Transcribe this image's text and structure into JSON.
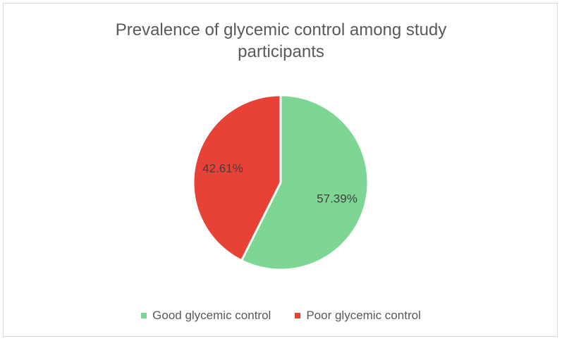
{
  "chart_data": {
    "type": "pie",
    "title": "Prevalence of glycemic control among study\nparticipants",
    "categories": [
      "Good glycemic control",
      "Poor glycemic control"
    ],
    "values": [
      57.39,
      42.61
    ],
    "labels": [
      "57.39%",
      "42.61%"
    ],
    "colors": [
      "#7dd694",
      "#e84135"
    ],
    "legend_position": "bottom",
    "start_angle": "12 o'clock",
    "direction": "clockwise"
  }
}
